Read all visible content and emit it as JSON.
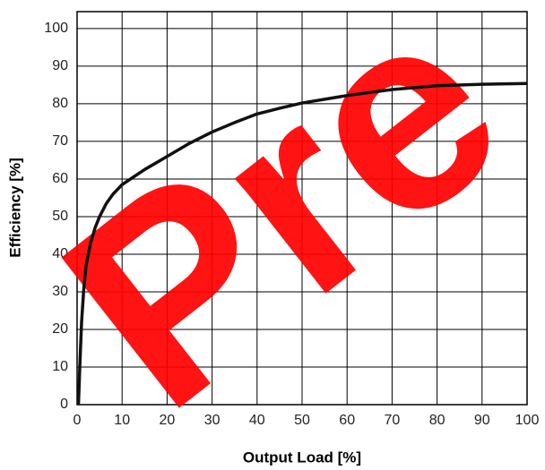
{
  "chart_data": {
    "type": "line",
    "xlabel": "Output Load [%]",
    "ylabel": "Efficiency [%]",
    "watermark": "Pre",
    "x": [
      0.3,
      0.6,
      1,
      1.5,
      2,
      3,
      4,
      5,
      6.5,
      8,
      10,
      12.5,
      15,
      20,
      25,
      30,
      35,
      40,
      45,
      50,
      60,
      70,
      80,
      90,
      100
    ],
    "series": [
      {
        "color": "#111111",
        "values": [
          0,
          10,
          22,
          31,
          37,
          43,
          47,
          50,
          53.5,
          56,
          58.5,
          60.5,
          62.5,
          66,
          69.5,
          72.5,
          75,
          77.3,
          78.8,
          80.2,
          82.2,
          83.8,
          84.8,
          85.2,
          85.4
        ]
      }
    ],
    "xlim": [
      0,
      100
    ],
    "ylim": [
      0,
      104.5
    ],
    "xticks": [
      0,
      10,
      20,
      30,
      40,
      50,
      60,
      70,
      80,
      90,
      100
    ],
    "yticks": [
      0,
      10,
      20,
      30,
      40,
      50,
      60,
      70,
      80,
      90,
      100
    ],
    "grid": true
  }
}
